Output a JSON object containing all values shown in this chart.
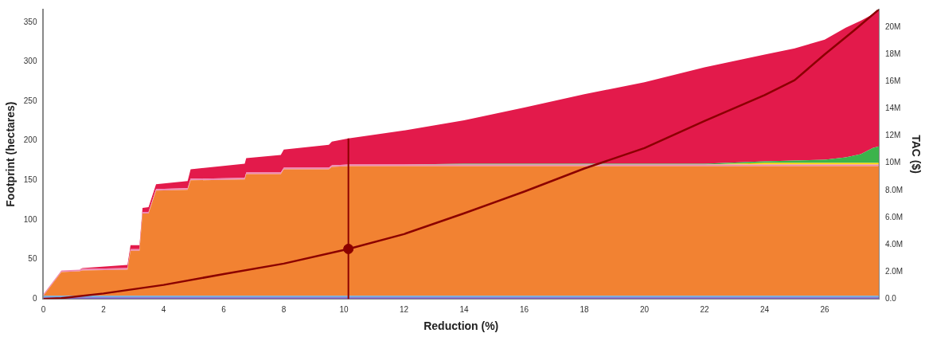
{
  "chart_data": {
    "type": "area",
    "stacked": true,
    "xlabel": "Reduction (%)",
    "ylabel": "Footprint (hectares)",
    "y2label": "TAC ($)",
    "x": [
      0,
      0.6,
      1.2,
      1.3,
      2.8,
      2.9,
      3.2,
      3.3,
      3.5,
      3.75,
      4.8,
      4.9,
      6.7,
      6.75,
      7.9,
      8.0,
      9.5,
      9.6,
      10.15,
      12,
      14,
      16,
      18,
      20,
      22,
      24,
      25,
      26,
      26.7,
      27.2,
      27.6,
      27.8
    ],
    "xlim": [
      0,
      27.8
    ],
    "xticks": [
      0,
      2,
      4,
      6,
      8,
      10,
      12,
      14,
      16,
      18,
      20,
      22,
      24,
      26
    ],
    "ylim": [
      0,
      366
    ],
    "yticks": [
      0,
      50,
      100,
      150,
      200,
      250,
      300,
      350
    ],
    "y2lim": [
      0,
      21300000
    ],
    "y2ticks": [
      {
        "value": 0,
        "label": "0.0"
      },
      {
        "value": 2000000,
        "label": "2.0M"
      },
      {
        "value": 4000000,
        "label": "4.0M"
      },
      {
        "value": 6000000,
        "label": "6.0M"
      },
      {
        "value": 8000000,
        "label": "8.0M"
      },
      {
        "value": 10000000,
        "label": "10M"
      },
      {
        "value": 12000000,
        "label": "12M"
      },
      {
        "value": 14000000,
        "label": "14M"
      },
      {
        "value": 16000000,
        "label": "16M"
      },
      {
        "value": 18000000,
        "label": "18M"
      },
      {
        "value": 20000000,
        "label": "20M"
      }
    ],
    "series": [
      {
        "color": "#7b5fc1",
        "values": [
          2,
          2,
          2,
          2,
          2,
          2,
          2,
          2,
          2,
          2,
          2,
          2,
          2,
          2,
          2,
          2,
          2,
          2,
          2,
          2,
          2,
          2,
          2,
          2,
          2,
          2,
          2,
          2,
          2,
          2,
          2,
          2
        ]
      },
      {
        "color": "#6fa8dc",
        "values": [
          2,
          2,
          2,
          2,
          2,
          2,
          2,
          2,
          2,
          2,
          2,
          2,
          2,
          2,
          2,
          2,
          2,
          2,
          2,
          2,
          2,
          2,
          2,
          2,
          2,
          2,
          2,
          2,
          2,
          2,
          2,
          2
        ]
      },
      {
        "color": "#f28232",
        "values": [
          0,
          30,
          31,
          32,
          33,
          57,
          57,
          104,
          104,
          133,
          134,
          146,
          147,
          154,
          154,
          160,
          160,
          163,
          164,
          164,
          164,
          164,
          164,
          164,
          164,
          164,
          164,
          164,
          164,
          164,
          164,
          164
        ]
      },
      {
        "color": "#ee88b4",
        "values": [
          2,
          2,
          2,
          2,
          2,
          2,
          2,
          2,
          2,
          2,
          2,
          2,
          2,
          2,
          2,
          2,
          2,
          2,
          2,
          2,
          2,
          2,
          2,
          2,
          2,
          2,
          2,
          2,
          2,
          2,
          2,
          2
        ]
      },
      {
        "color": "#ffd700",
        "values": [
          0,
          0,
          0,
          0,
          0,
          0,
          0,
          0,
          0,
          0,
          0,
          0,
          0,
          0,
          0,
          0,
          0,
          0,
          0,
          0,
          0,
          0,
          0,
          0,
          0,
          2,
          2,
          2,
          2,
          2,
          2,
          2
        ]
      },
      {
        "color": "#3cb44b",
        "values": [
          0,
          0,
          0,
          0,
          0,
          0,
          0,
          0,
          0,
          0,
          0,
          0,
          0,
          0,
          0,
          0,
          0,
          0,
          0,
          0,
          1,
          1,
          1,
          1,
          1,
          2,
          3,
          4,
          7,
          11,
          19,
          21
        ]
      },
      {
        "color": "#e31a4b",
        "values": [
          0,
          0,
          0,
          1,
          4,
          5,
          5,
          5,
          6,
          6,
          9,
          12,
          18,
          18,
          22,
          23,
          29,
          30,
          33,
          43,
          55,
          71,
          88,
          103,
          122,
          135,
          142,
          152,
          164,
          169,
          169,
          173
        ]
      },
      {
        "type": "line",
        "axis": "y2",
        "color": "#8b0000",
        "marker": "none",
        "x": [
          0,
          0.6,
          2,
          4,
          6,
          8,
          10.15,
          12,
          14,
          16,
          18,
          20,
          22,
          24,
          25,
          26,
          27,
          27.8
        ],
        "values": [
          0,
          50000,
          400000,
          1030000,
          1830000,
          2600000,
          3680000,
          4770000,
          6300000,
          7900000,
          9600000,
          11100000,
          13100000,
          15000000,
          16100000,
          18000000,
          19800000,
          21300000
        ]
      },
      {
        "type": "scatter",
        "axis": "y2",
        "color": "#8b0000",
        "marker": "circle",
        "x": [
          10.15
        ],
        "values": [
          3680000
        ]
      }
    ],
    "ref_lines": [
      {
        "axis": "x",
        "value": 10.15,
        "color": "#8b0000"
      }
    ]
  }
}
